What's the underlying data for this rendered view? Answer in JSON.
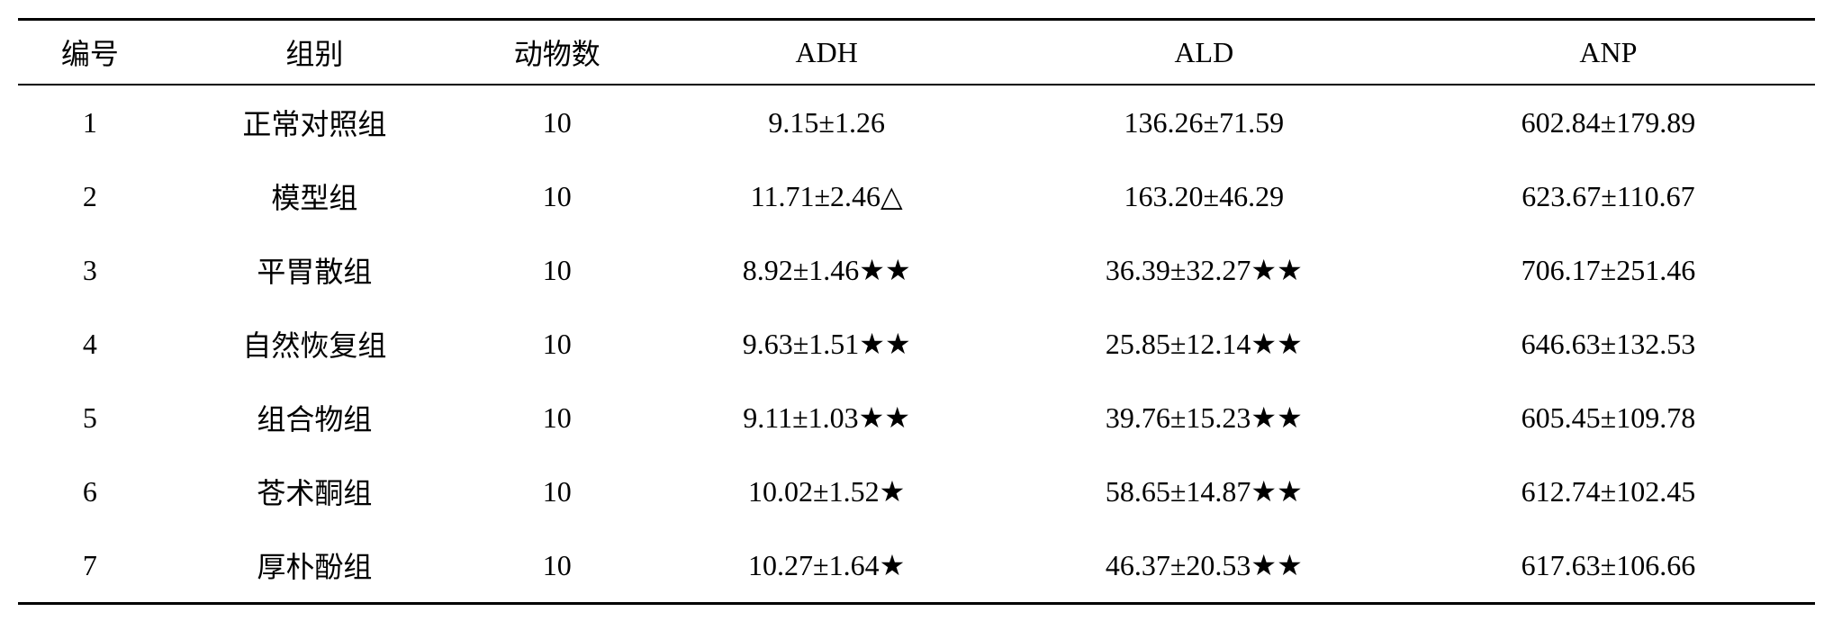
{
  "table": {
    "columns": [
      {
        "label": "编号",
        "class": "col-num"
      },
      {
        "label": "组别",
        "class": "col-group"
      },
      {
        "label": "动物数",
        "class": "col-animals"
      },
      {
        "label": "ADH",
        "class": "col-adh"
      },
      {
        "label": "ALD",
        "class": "col-ald"
      },
      {
        "label": "ANP",
        "class": "col-anp"
      }
    ],
    "rows": [
      {
        "num": "1",
        "group": "正常对照组",
        "animals": "10",
        "adh": "9.15±1.26",
        "ald": "136.26±71.59",
        "anp": "602.84±179.89"
      },
      {
        "num": "2",
        "group": "模型组",
        "animals": "10",
        "adh": "11.71±2.46△",
        "ald": "163.20±46.29",
        "anp": "623.67±110.67"
      },
      {
        "num": "3",
        "group": "平胃散组",
        "animals": "10",
        "adh": "8.92±1.46★★",
        "ald": "36.39±32.27★★",
        "anp": "706.17±251.46"
      },
      {
        "num": "4",
        "group": "自然恢复组",
        "animals": "10",
        "adh": "9.63±1.51★★",
        "ald": "25.85±12.14★★",
        "anp": "646.63±132.53"
      },
      {
        "num": "5",
        "group": "组合物组",
        "animals": "10",
        "adh": "9.11±1.03★★",
        "ald": "39.76±15.23★★",
        "anp": "605.45±109.78"
      },
      {
        "num": "6",
        "group": "苍术酮组",
        "animals": "10",
        "adh": "10.02±1.52★",
        "ald": "58.65±14.87★★",
        "anp": "612.74±102.45"
      },
      {
        "num": "7",
        "group": "厚朴酚组",
        "animals": "10",
        "adh": "10.27±1.64★",
        "ald": "46.37±20.53★★",
        "anp": "617.63±106.66"
      }
    ],
    "styling": {
      "background_color": "#ffffff",
      "text_color": "#000000",
      "border_color": "#000000",
      "top_border_width": 3,
      "header_bottom_border_width": 2,
      "bottom_border_width": 3,
      "font_size": 32,
      "font_family": "SimSun",
      "cell_padding_vertical": 18,
      "header_padding_vertical": 12,
      "column_widths_pct": [
        8,
        17,
        10,
        20,
        22,
        23
      ],
      "text_align": "center"
    }
  }
}
